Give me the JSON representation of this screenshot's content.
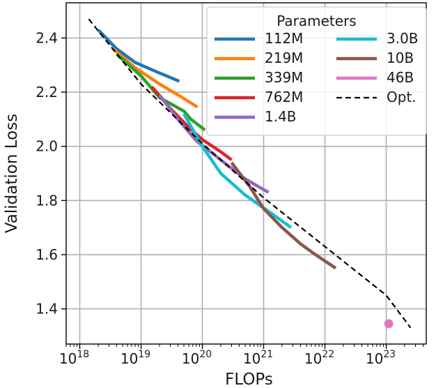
{
  "chart_data": {
    "type": "line",
    "xlabel": "FLOPs",
    "ylabel": "Validation Loss",
    "x_scale": "log",
    "x_range": [
      6e+17,
      4.5e+23
    ],
    "x_ticks": [
      {
        "base": "10",
        "exp": "18",
        "value": 1e+18
      },
      {
        "base": "10",
        "exp": "19",
        "value": 1e+19
      },
      {
        "base": "10",
        "exp": "20",
        "value": 1e+20
      },
      {
        "base": "10",
        "exp": "21",
        "value": 1e+21
      },
      {
        "base": "10",
        "exp": "22",
        "value": 1e+22
      },
      {
        "base": "10",
        "exp": "23",
        "value": 1e+23
      }
    ],
    "y_range": [
      1.27,
      2.53
    ],
    "y_ticks": [
      "1.4",
      "1.6",
      "1.8",
      "2.0",
      "2.2",
      "2.4"
    ],
    "grid": true,
    "legend": {
      "title": "Parameters",
      "placement": "top-right",
      "columns": 2
    },
    "series": [
      {
        "name": "112M",
        "color": "#1f77b4",
        "x": [
          2e+18,
          4e+18,
          8e+18,
          1.6e+19,
          4.2e+19
        ],
        "y": [
          2.43,
          2.36,
          2.31,
          2.28,
          2.24
        ]
      },
      {
        "name": "219M",
        "color": "#ff7f0e",
        "x": [
          3.5e+18,
          8e+18,
          2e+19,
          4e+19,
          8.3e+19
        ],
        "y": [
          2.36,
          2.29,
          2.23,
          2.19,
          2.145
        ]
      },
      {
        "name": "339M",
        "color": "#2ca02c",
        "x": [
          4e+18,
          1e+19,
          2e+19,
          5e+19,
          6.5e+19,
          1.1e+20
        ],
        "y": [
          2.34,
          2.26,
          2.18,
          2.13,
          2.1,
          2.06
        ]
      },
      {
        "name": "762M",
        "color": "#d62728",
        "x": [
          1.5e+19,
          3e+19,
          6e+19,
          1e+20,
          2e+20,
          3e+20
        ],
        "y": [
          2.22,
          2.14,
          2.07,
          2.025,
          1.98,
          1.95
        ]
      },
      {
        "name": "1.4B",
        "color": "#9467bd",
        "x": [
          2e+19,
          4e+19,
          8e+19,
          2e+20,
          5e+20,
          1.2e+21
        ],
        "y": [
          2.19,
          2.1,
          2.02,
          1.95,
          1.88,
          1.83
        ]
      },
      {
        "name": "3.0B",
        "color": "#17becf",
        "x": [
          5e+19,
          1e+20,
          2e+20,
          5e+20,
          1.2e+21,
          2.8e+21
        ],
        "y": [
          2.12,
          2.0,
          1.9,
          1.82,
          1.76,
          1.7
        ]
      },
      {
        "name": "10B",
        "color": "#8c564b",
        "x": [
          3e+20,
          6e+20,
          1e+21,
          2e+21,
          4e+21,
          7e+21,
          1.5e+22
        ],
        "y": [
          1.94,
          1.85,
          1.77,
          1.7,
          1.64,
          1.6,
          1.55
        ]
      },
      {
        "name": "46B",
        "color": "#e377c2",
        "x": [
          1.1e+23
        ],
        "y": [
          1.345
        ],
        "marker": "point"
      },
      {
        "name": "Opt.",
        "color": "#000000",
        "style": "dashed",
        "x": [
          1.4e+18,
          1e+19,
          1e+20,
          1e+21,
          1e+22,
          1e+23,
          2.5e+23
        ],
        "y": [
          2.47,
          2.23,
          2.01,
          1.81,
          1.63,
          1.45,
          1.33
        ]
      }
    ]
  }
}
